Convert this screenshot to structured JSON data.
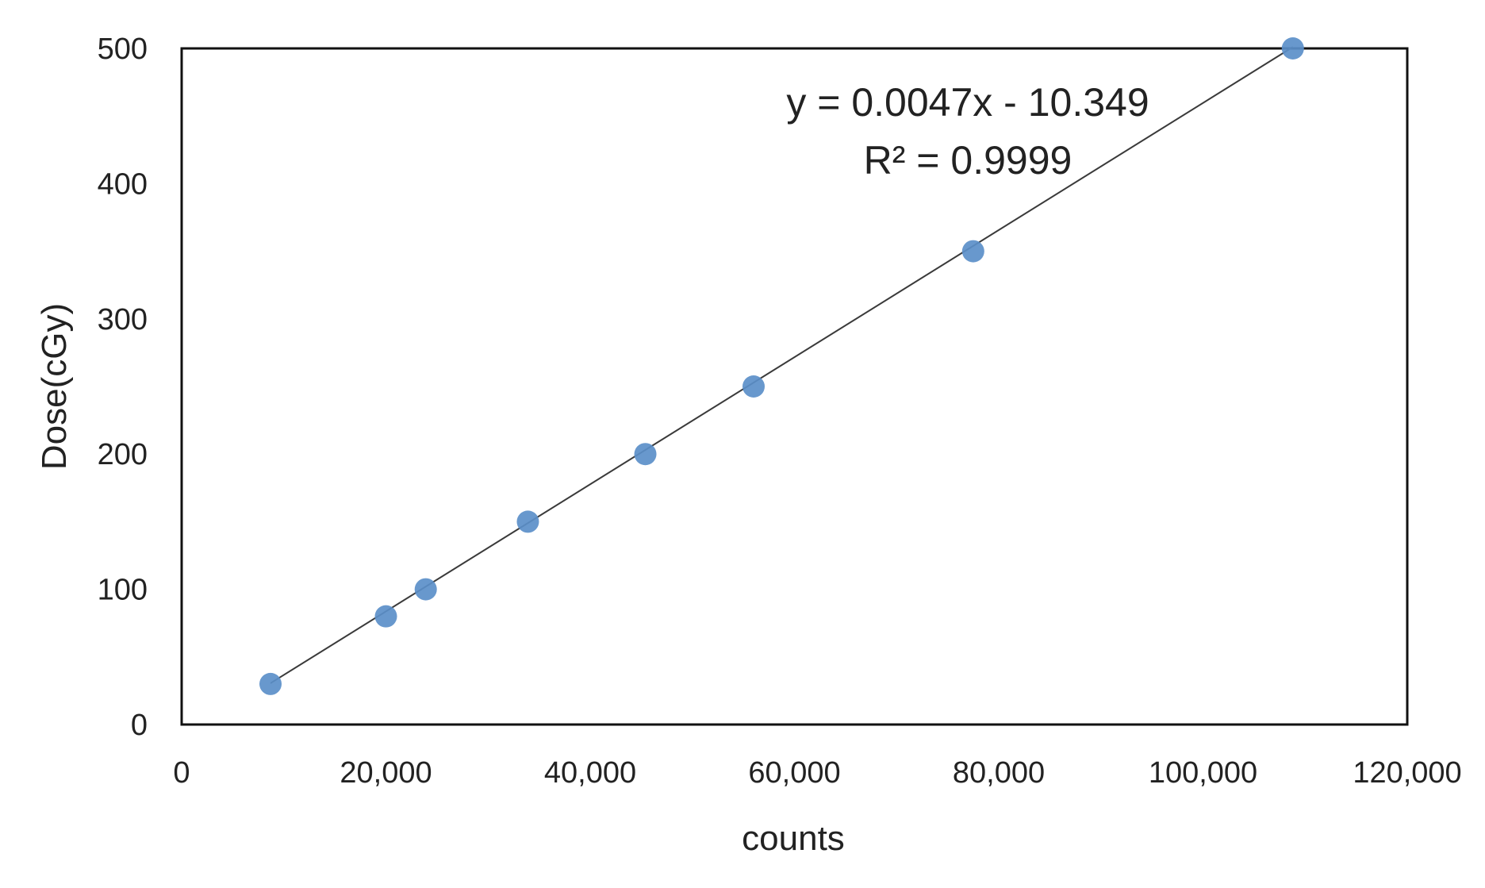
{
  "chart_data": {
    "type": "scatter",
    "title": "",
    "xlabel": "counts",
    "ylabel": "Dose(cGy)",
    "xlim": [
      0,
      120000
    ],
    "ylim": [
      0,
      500
    ],
    "x_ticks": [
      0,
      20000,
      40000,
      60000,
      80000,
      100000,
      120000
    ],
    "x_tick_labels": [
      "0",
      "20,000",
      "40,000",
      "60,000",
      "80,000",
      "100,000",
      "120,000"
    ],
    "y_ticks": [
      0,
      100,
      200,
      300,
      400,
      500
    ],
    "y_tick_labels": [
      "0",
      "100",
      "200",
      "300",
      "400",
      "500"
    ],
    "grid": false,
    "legend": "none",
    "series": [
      {
        "x": [
          8700,
          20000,
          23900,
          33900,
          45400,
          56000,
          77500,
          108800
        ],
        "y": [
          30,
          80,
          100,
          150,
          200,
          250,
          350,
          500
        ],
        "color": "#5b8fc9"
      }
    ],
    "trendline": {
      "slope": 0.0047,
      "intercept": -10.349,
      "x_range": [
        8700,
        108800
      ],
      "color": "#3a3a3a"
    },
    "annotations": {
      "equation": "y = 0.0047x - 10.349",
      "r_squared": "R² = 0.9999"
    }
  }
}
